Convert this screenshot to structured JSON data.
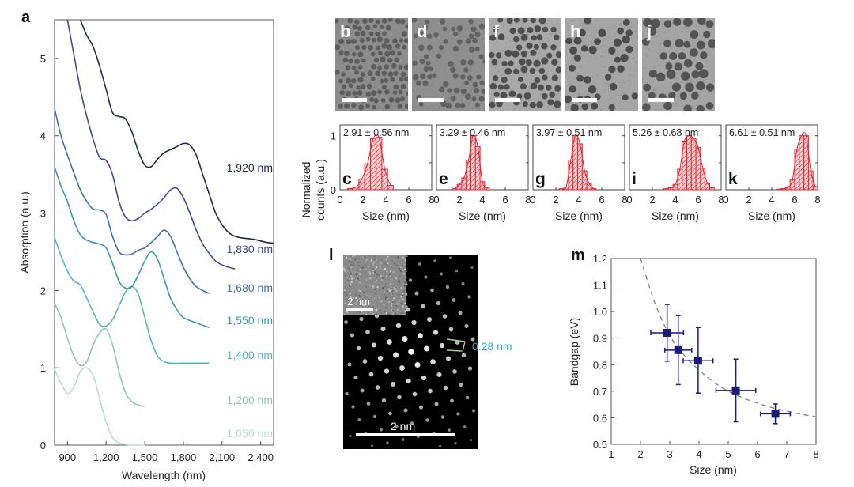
{
  "figure": {
    "panel_letters": {
      "a": "a",
      "b": "b",
      "c": "c",
      "d": "d",
      "e": "e",
      "f": "f",
      "g": "g",
      "h": "h",
      "i": "i",
      "j": "j",
      "k": "k",
      "l": "l",
      "m": "m"
    }
  },
  "chart_data": [
    {
      "id": "a",
      "type": "line",
      "title": "",
      "xlabel": "Wavelength (nm)",
      "ylabel": "Absorption (a.u.)",
      "xlim": [
        800,
        2500
      ],
      "ylim": [
        0,
        5.5
      ],
      "xticks": [
        900,
        1200,
        1500,
        1800,
        2100,
        2400
      ],
      "xtick_labels": [
        "900",
        "1,200",
        "1,500",
        "1,800",
        "2,100",
        "2,400"
      ],
      "yticks": [
        0,
        1,
        2,
        3,
        4,
        5
      ],
      "ytick_labels": [
        "0",
        "1",
        "2",
        "3",
        "4",
        "5"
      ],
      "grid": false,
      "series": [
        {
          "name": "1,050 nm",
          "color": "#b9ddd6",
          "x": [
            800,
            850,
            900,
            950,
            1000,
            1050,
            1100,
            1150,
            1200,
            1250,
            1300,
            1350,
            1400,
            1450,
            1500
          ],
          "y": [
            0.98,
            0.8,
            0.67,
            0.75,
            0.95,
            1.0,
            0.9,
            0.6,
            0.3,
            0.1,
            0.03,
            0.01,
            0.0,
            0.0,
            0.0
          ]
        },
        {
          "name": "1,200 nm",
          "color": "#8ec8b6",
          "x": [
            800,
            850,
            900,
            950,
            1000,
            1050,
            1100,
            1150,
            1200,
            1250,
            1300,
            1350,
            1400,
            1450,
            1500
          ],
          "y": [
            1.83,
            1.65,
            1.38,
            1.15,
            1.03,
            1.08,
            1.3,
            1.45,
            1.5,
            1.3,
            0.95,
            0.68,
            0.56,
            0.52,
            0.5
          ]
        },
        {
          "name": "1,400 nm",
          "color": "#55b9b6",
          "x": [
            800,
            850,
            900,
            950,
            1000,
            1050,
            1100,
            1150,
            1200,
            1250,
            1300,
            1350,
            1400,
            1450,
            1500,
            1550,
            1600,
            1650,
            1700,
            1800,
            1900,
            2000
          ],
          "y": [
            2.68,
            2.45,
            2.25,
            2.12,
            2.07,
            1.9,
            1.72,
            1.56,
            1.54,
            1.62,
            1.8,
            1.98,
            2.05,
            1.95,
            1.65,
            1.35,
            1.15,
            1.08,
            1.06,
            1.06,
            1.06,
            1.06
          ]
        },
        {
          "name": "1,550 nm",
          "color": "#3a98b4",
          "x": [
            800,
            850,
            900,
            950,
            1000,
            1050,
            1100,
            1150,
            1200,
            1250,
            1300,
            1350,
            1400,
            1450,
            1500,
            1550,
            1600,
            1650,
            1700,
            1750,
            1800,
            1900,
            2000
          ],
          "y": [
            3.6,
            3.35,
            3.15,
            2.9,
            2.72,
            2.65,
            2.62,
            2.6,
            2.55,
            2.35,
            2.12,
            2.03,
            2.05,
            2.2,
            2.38,
            2.5,
            2.4,
            2.15,
            1.9,
            1.75,
            1.65,
            1.58,
            1.52
          ]
        },
        {
          "name": "1,680 nm",
          "color": "#3f6fa6",
          "x": [
            800,
            850,
            900,
            950,
            1000,
            1050,
            1100,
            1150,
            1200,
            1250,
            1300,
            1350,
            1400,
            1450,
            1500,
            1550,
            1600,
            1650,
            1700,
            1750,
            1800,
            1850,
            1900,
            1950,
            2000
          ],
          "y": [
            4.35,
            4.0,
            3.75,
            3.52,
            3.3,
            3.15,
            3.05,
            3.04,
            2.98,
            2.7,
            2.5,
            2.46,
            2.47,
            2.52,
            2.55,
            2.62,
            2.7,
            2.78,
            2.7,
            2.5,
            2.3,
            2.15,
            2.05,
            2.0,
            1.96
          ]
        },
        {
          "name": "1,830 nm",
          "color": "#3e4a96",
          "x": [
            900,
            950,
            1000,
            1050,
            1100,
            1150,
            1200,
            1250,
            1300,
            1350,
            1400,
            1450,
            1500,
            1550,
            1600,
            1650,
            1700,
            1750,
            1800,
            1850,
            1900,
            1950,
            2000,
            2050,
            2100,
            2150,
            2200
          ],
          "y": [
            5.5,
            5.05,
            4.6,
            4.25,
            3.95,
            3.72,
            3.68,
            3.5,
            3.15,
            2.95,
            2.9,
            2.93,
            3.0,
            3.05,
            3.12,
            3.2,
            3.3,
            3.32,
            3.2,
            3.0,
            2.78,
            2.6,
            2.48,
            2.38,
            2.33,
            2.3,
            2.28
          ]
        },
        {
          "name": "1,920 nm",
          "color": "#23284d",
          "x": [
            1000,
            1050,
            1100,
            1150,
            1200,
            1250,
            1300,
            1350,
            1400,
            1450,
            1500,
            1550,
            1600,
            1650,
            1700,
            1750,
            1800,
            1850,
            1900,
            1950,
            2000,
            2050,
            2100,
            2150,
            2200,
            2250,
            2300,
            2350,
            2400,
            2450,
            2500
          ],
          "y": [
            5.5,
            5.3,
            5.15,
            4.9,
            4.6,
            4.3,
            4.25,
            4.22,
            4.05,
            3.8,
            3.62,
            3.6,
            3.7,
            3.78,
            3.82,
            3.86,
            3.9,
            3.88,
            3.75,
            3.5,
            3.25,
            3.0,
            2.85,
            2.75,
            2.7,
            2.68,
            2.67,
            2.66,
            2.64,
            2.62,
            2.61
          ]
        }
      ],
      "annotations": [
        "1,920 nm",
        "1,830 nm",
        "1,680 nm",
        "1,550 nm",
        "1,400 nm",
        "1,200 nm",
        "1,050 nm"
      ]
    },
    {
      "id": "c-k",
      "type": "bar",
      "ylabel": "Normalized counts (a.u.)",
      "xlabel": "Size (nm)",
      "xlim": [
        0,
        8
      ],
      "ylim": [
        0,
        1.2
      ],
      "xticks": [
        0,
        2,
        4,
        6,
        8
      ],
      "yticks": [
        0,
        1
      ],
      "color": "#e8212b",
      "panels": [
        {
          "letter": "c",
          "label": "2.91 ± 0.56 nm",
          "bin_centers": [
            0.9,
            1.4,
            1.9,
            2.4,
            2.9,
            3.4,
            3.9,
            4.4
          ],
          "values": [
            0.02,
            0.05,
            0.2,
            0.48,
            0.95,
            0.97,
            0.38,
            0.08
          ]
        },
        {
          "letter": "e",
          "label": "3.29 ± 0.46 nm",
          "bin_centers": [
            1.6,
            2.0,
            2.4,
            2.8,
            3.2,
            3.6,
            4.0,
            4.4
          ],
          "values": [
            0.02,
            0.1,
            0.22,
            0.55,
            1.0,
            0.8,
            0.15,
            0.04
          ]
        },
        {
          "letter": "g",
          "label": "3.97 ± 0.51 nm",
          "bin_centers": [
            2.5,
            2.9,
            3.3,
            3.7,
            4.1,
            4.5,
            4.9,
            5.3
          ],
          "values": [
            0.02,
            0.05,
            0.55,
            1.0,
            0.85,
            0.35,
            0.12,
            0.02
          ]
        },
        {
          "letter": "i",
          "label": "5.26 ± 0.68 nm",
          "bin_centers": [
            3.2,
            3.6,
            4.0,
            4.4,
            4.8,
            5.2,
            5.6,
            6.0,
            6.4,
            6.8,
            7.2
          ],
          "values": [
            0.02,
            0.04,
            0.1,
            0.38,
            0.9,
            1.0,
            0.95,
            0.78,
            0.4,
            0.12,
            0.04
          ]
        },
        {
          "letter": "k",
          "label": "6.61 ± 0.51 nm",
          "bin_centers": [
            4.6,
            5.0,
            5.4,
            5.8,
            6.2,
            6.6,
            7.0,
            7.4,
            7.8
          ],
          "values": [
            0.01,
            0.02,
            0.05,
            0.18,
            0.75,
            1.0,
            1.0,
            0.35,
            0.06
          ]
        }
      ]
    },
    {
      "id": "m",
      "type": "scatter",
      "xlabel": "Size (nm)",
      "ylabel": "Bandgap (eV)",
      "xlim": [
        1,
        8
      ],
      "ylim": [
        0.5,
        1.2
      ],
      "xticks": [
        1,
        2,
        3,
        4,
        5,
        6,
        7,
        8
      ],
      "yticks": [
        0.5,
        0.6,
        0.7,
        0.8,
        0.9,
        1.0,
        1.1,
        1.2
      ],
      "ytick_labels": [
        "0.5",
        "0.6",
        "0.7",
        "0.8",
        "0.9",
        "1.0",
        "1.1",
        "1.2"
      ],
      "color": "#1a1a7a",
      "points": [
        {
          "x": 2.91,
          "y": 0.92,
          "xerr": 0.56,
          "yerr_low": 0.107,
          "yerr_high": 0.107
        },
        {
          "x": 3.29,
          "y": 0.855,
          "xerr": 0.46,
          "yerr_low": 0.13,
          "yerr_high": 0.13
        },
        {
          "x": 3.97,
          "y": 0.815,
          "xerr": 0.51,
          "yerr_low": 0.122,
          "yerr_high": 0.125
        },
        {
          "x": 5.26,
          "y": 0.703,
          "xerr": 0.68,
          "yerr_low": 0.118,
          "yerr_high": 0.118
        },
        {
          "x": 6.61,
          "y": 0.615,
          "xerr": 0.51,
          "yerr_low": 0.037,
          "yerr_high": 0.037
        }
      ],
      "fit": {
        "style": "dashed",
        "color": "#888888",
        "x": [
          2.0,
          2.5,
          3.0,
          3.5,
          4.0,
          4.5,
          5.0,
          5.5,
          6.0,
          6.5,
          7.0,
          7.5,
          8.0
        ],
        "y": [
          1.2,
          1.03,
          0.91,
          0.835,
          0.78,
          0.735,
          0.7,
          0.675,
          0.655,
          0.638,
          0.625,
          0.613,
          0.604
        ]
      }
    }
  ],
  "tem_images": [
    {
      "letter": "b",
      "scale_bar": true
    },
    {
      "letter": "d",
      "scale_bar": true
    },
    {
      "letter": "f",
      "scale_bar": true
    },
    {
      "letter": "h",
      "scale_bar": true
    },
    {
      "letter": "j",
      "scale_bar": true
    }
  ],
  "hrtem": {
    "letter": "l",
    "inset_scale_label": "2 nm",
    "main_scale_label": "2 nm",
    "spacing_label": "0.28 nm",
    "spacing_color": "#2aa6e0"
  }
}
